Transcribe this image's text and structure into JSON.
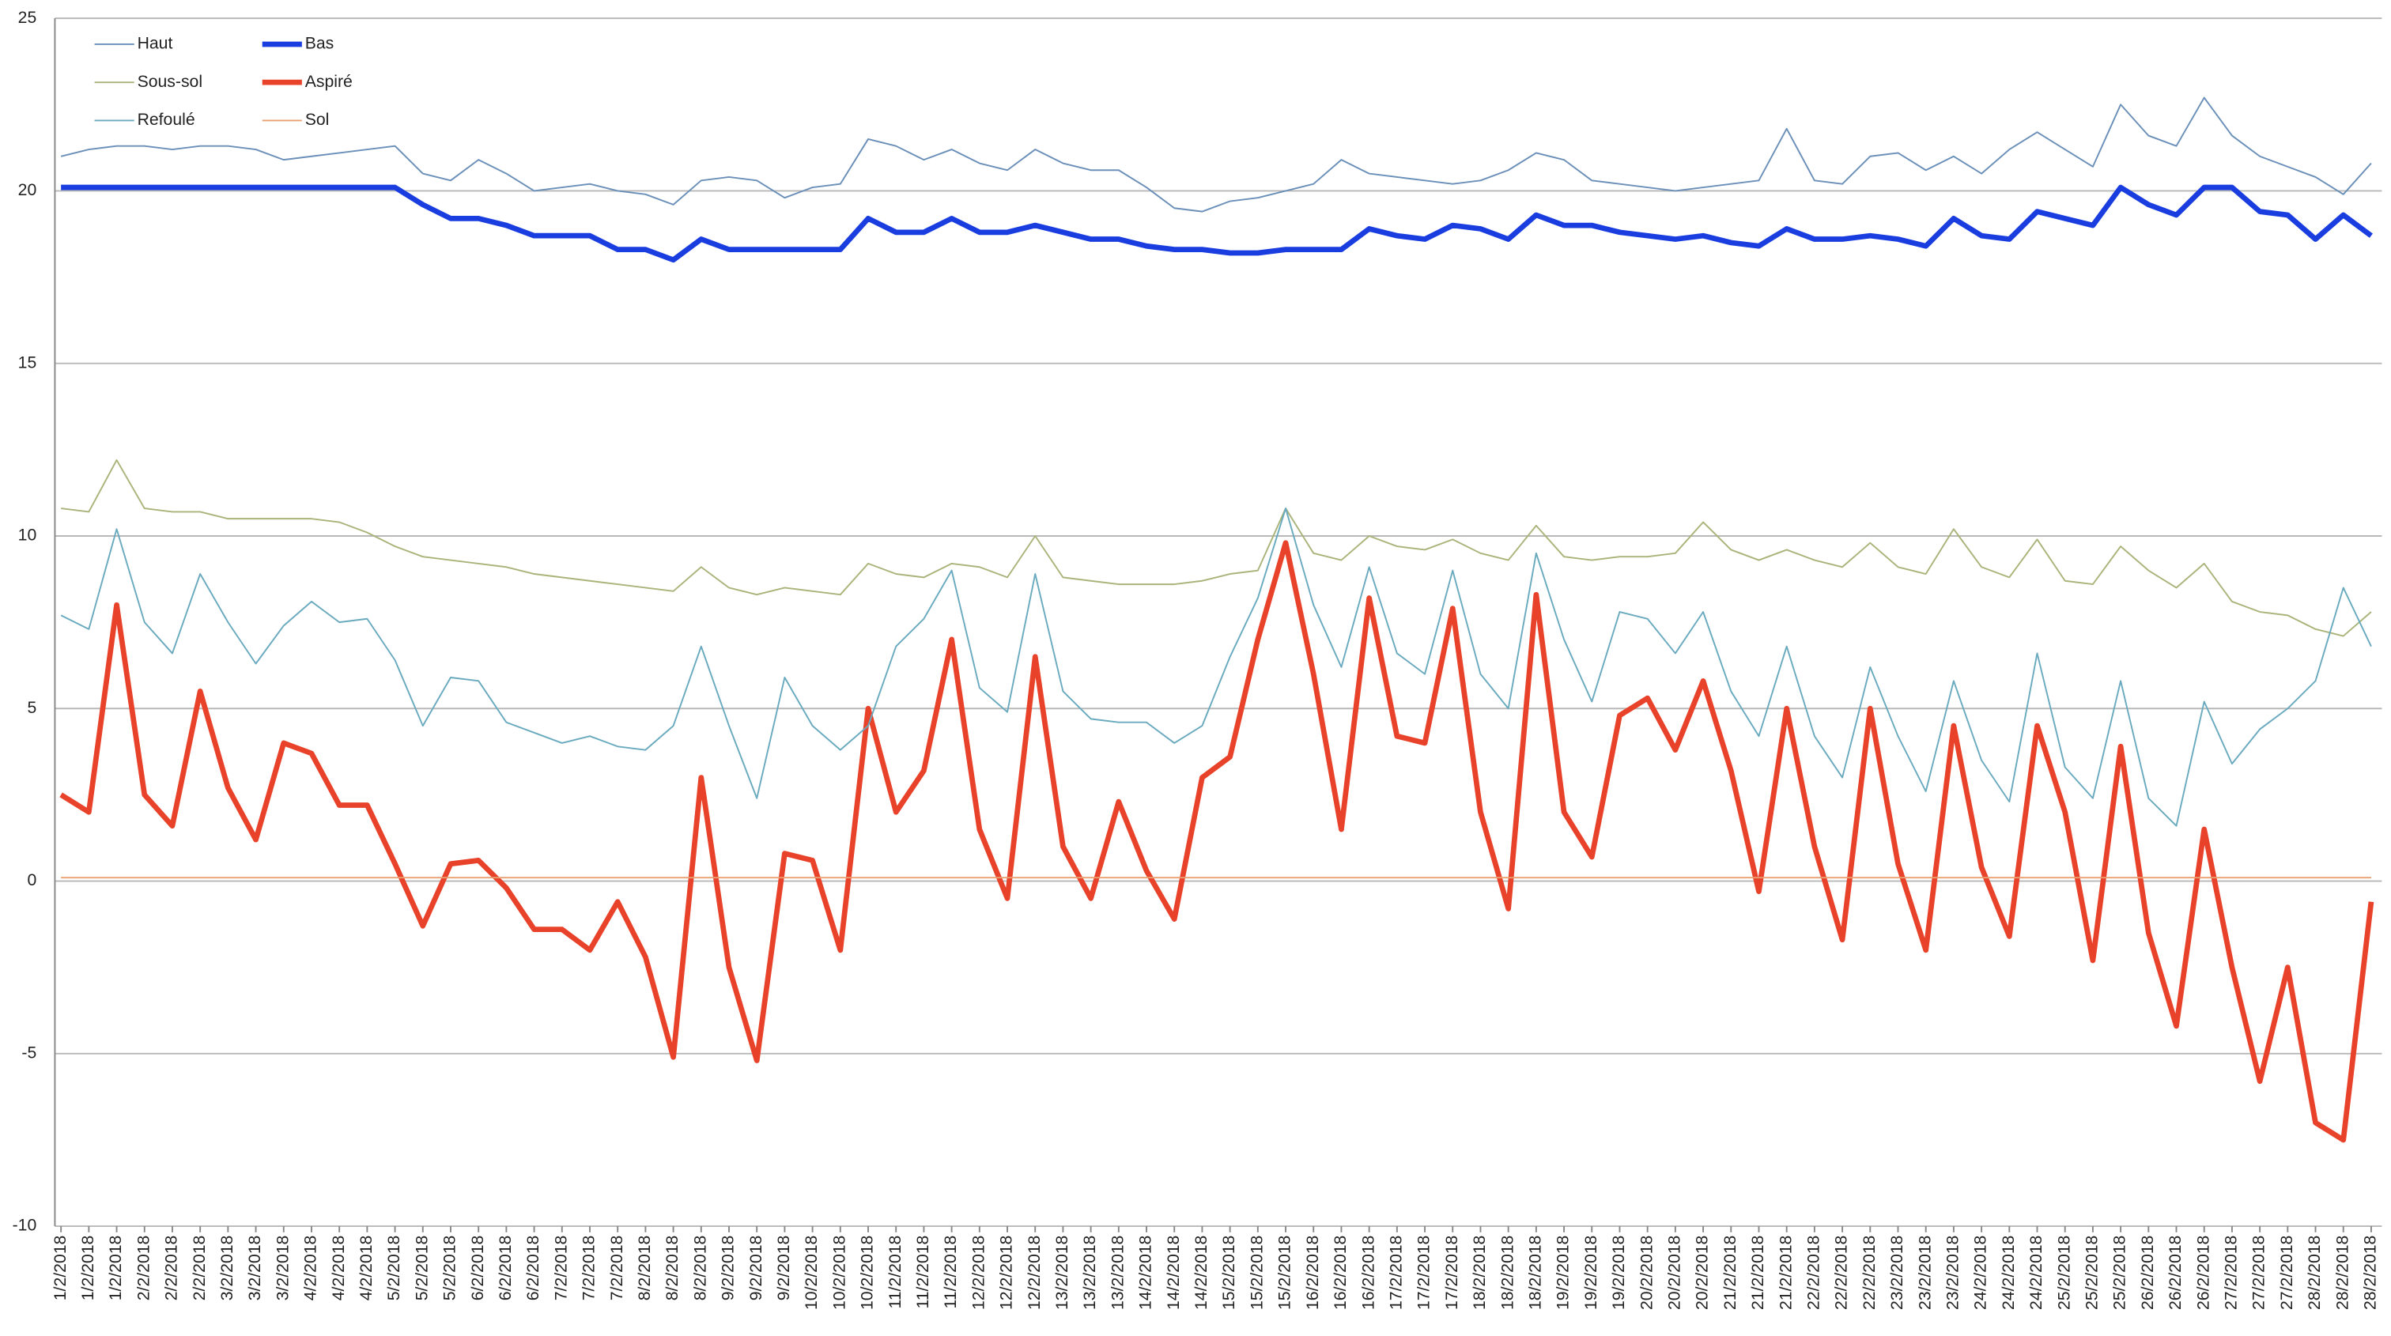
{
  "chart_data": {
    "type": "line",
    "categories": [
      "1/2/2018",
      "1/2/2018",
      "1/2/2018",
      "2/2/2018",
      "2/2/2018",
      "2/2/2018",
      "3/2/2018",
      "3/2/2018",
      "3/2/2018",
      "4/2/2018",
      "4/2/2018",
      "4/2/2018",
      "5/2/2018",
      "5/2/2018",
      "5/2/2018",
      "6/2/2018",
      "6/2/2018",
      "6/2/2018",
      "7/2/2018",
      "7/2/2018",
      "7/2/2018",
      "8/2/2018",
      "8/2/2018",
      "8/2/2018",
      "9/2/2018",
      "9/2/2018",
      "9/2/2018",
      "10/2/2018",
      "10/2/2018",
      "10/2/2018",
      "11/2/2018",
      "11/2/2018",
      "11/2/2018",
      "12/2/2018",
      "12/2/2018",
      "12/2/2018",
      "13/2/2018",
      "13/2/2018",
      "13/2/2018",
      "14/2/2018",
      "14/2/2018",
      "14/2/2018",
      "15/2/2018",
      "15/2/2018",
      "15/2/2018",
      "16/2/2018",
      "16/2/2018",
      "16/2/2018",
      "17/2/2018",
      "17/2/2018",
      "17/2/2018",
      "18/2/2018",
      "18/2/2018",
      "18/2/2018",
      "19/2/2018",
      "19/2/2018",
      "19/2/2018",
      "20/2/2018",
      "20/2/2018",
      "20/2/2018",
      "21/2/2018",
      "21/2/2018",
      "21/2/2018",
      "22/2/2018",
      "22/2/2018",
      "22/2/2018",
      "23/2/2018",
      "23/2/2018",
      "23/2/2018",
      "24/2/2018",
      "24/2/2018",
      "24/2/2018",
      "25/2/2018",
      "25/2/2018",
      "25/2/2018",
      "26/2/2018",
      "26/2/2018",
      "26/2/2018",
      "27/2/2018",
      "27/2/2018",
      "27/2/2018",
      "28/2/2018",
      "28/2/2018",
      "28/2/2018"
    ],
    "series": [
      {
        "name": "Haut",
        "color": "#6a8fb8",
        "line_width": 1,
        "values": [
          21,
          21.2,
          21.3,
          21.3,
          21.2,
          21.3,
          21.3,
          21.2,
          20.9,
          21,
          21.1,
          21.2,
          21.3,
          20.5,
          20.3,
          20.9,
          20.5,
          20,
          20.1,
          20.2,
          20,
          19.9,
          19.6,
          20.3,
          20.4,
          20.3,
          19.8,
          20.1,
          20.2,
          21.5,
          21.3,
          20.9,
          21.2,
          20.8,
          20.6,
          21.2,
          20.8,
          20.6,
          20.6,
          20.1,
          19.5,
          19.4,
          19.7,
          19.8,
          20,
          20.2,
          20.9,
          20.5,
          20.4,
          20.3,
          20.2,
          20.3,
          20.6,
          21.1,
          20.9,
          20.3,
          20.2,
          20.1,
          20,
          20.1,
          20.2,
          20.3,
          21.8,
          20.3,
          20.2,
          21,
          21.1,
          20.6,
          21,
          20.5,
          21.2,
          21.7,
          21.2,
          20.7,
          22.5,
          21.6,
          21.3,
          22.7,
          21.6,
          21,
          20.7,
          20.4,
          19.9,
          20.8
        ]
      },
      {
        "name": "Bas",
        "color": "#1a3de0",
        "line_width": 3.5,
        "values": [
          20.1,
          20.1,
          20.1,
          20.1,
          20.1,
          20.1,
          20.1,
          20.1,
          20.1,
          20.1,
          20.1,
          20.1,
          20.1,
          19.6,
          19.2,
          19.2,
          19,
          18.7,
          18.7,
          18.7,
          18.3,
          18.3,
          18,
          18.6,
          18.3,
          18.3,
          18.3,
          18.3,
          18.3,
          19.2,
          18.8,
          18.8,
          19.2,
          18.8,
          18.8,
          19,
          18.8,
          18.6,
          18.6,
          18.4,
          18.3,
          18.3,
          18.2,
          18.2,
          18.3,
          18.3,
          18.3,
          18.9,
          18.7,
          18.6,
          19,
          18.9,
          18.6,
          19.3,
          19,
          19,
          18.8,
          18.7,
          18.6,
          18.7,
          18.5,
          18.4,
          18.9,
          18.6,
          18.6,
          18.7,
          18.6,
          18.4,
          19.2,
          18.7,
          18.6,
          19.4,
          19.2,
          19,
          20.1,
          19.6,
          19.3,
          20.1,
          20.1,
          19.4,
          19.3,
          18.6,
          19.3,
          18.7
        ]
      },
      {
        "name": "Sous-sol",
        "color": "#a9b47a",
        "line_width": 1,
        "values": [
          10.8,
          10.7,
          12.2,
          10.8,
          10.7,
          10.7,
          10.5,
          10.5,
          10.5,
          10.5,
          10.4,
          10.1,
          9.7,
          9.4,
          9.3,
          9.2,
          9.1,
          8.9,
          8.8,
          8.7,
          8.6,
          8.5,
          8.4,
          9.1,
          8.5,
          8.3,
          8.5,
          8.4,
          8.3,
          9.2,
          8.9,
          8.8,
          9.2,
          9.1,
          8.8,
          10,
          8.8,
          8.7,
          8.6,
          8.6,
          8.6,
          8.7,
          8.9,
          9,
          10.8,
          9.5,
          9.3,
          10,
          9.7,
          9.6,
          9.9,
          9.5,
          9.3,
          10.3,
          9.4,
          9.3,
          9.4,
          9.4,
          9.5,
          10.4,
          9.6,
          9.3,
          9.6,
          9.3,
          9.1,
          9.8,
          9.1,
          8.9,
          10.2,
          9.1,
          8.8,
          9.9,
          8.7,
          8.6,
          9.7,
          9,
          8.5,
          9.2,
          8.1,
          7.8,
          7.7,
          7.3,
          7.1,
          7.8
        ]
      },
      {
        "name": "Aspiré",
        "color": "#e8432a",
        "line_width": 3.5,
        "values": [
          2.5,
          2,
          8,
          2.5,
          1.6,
          5.5,
          2.7,
          1.2,
          4,
          3.7,
          2.2,
          2.2,
          0.5,
          -1.3,
          0.5,
          0.6,
          -0.2,
          -1.4,
          -1.4,
          -2,
          -0.6,
          -2.2,
          -5.1,
          3,
          -2.5,
          -5.2,
          0.8,
          0.6,
          -2,
          5,
          2,
          3.2,
          7,
          1.5,
          -0.5,
          6.5,
          1,
          -0.5,
          2.3,
          0.3,
          -1.1,
          3,
          3.6,
          7,
          9.8,
          6,
          1.5,
          8.2,
          4.2,
          4,
          7.9,
          2,
          -0.8,
          8.3,
          2,
          0.7,
          4.8,
          5.3,
          3.8,
          5.8,
          3.2,
          -0.3,
          5,
          1,
          -1.7,
          5,
          0.5,
          -2,
          4.5,
          0.4,
          -1.6,
          4.5,
          2,
          -2.3,
          3.9,
          -1.5,
          -4.2,
          1.5,
          -2.5,
          -5.8,
          -2.5,
          -7,
          -7.5,
          -0.6
        ]
      },
      {
        "name": "Refoulé",
        "color": "#6aaabf",
        "line_width": 1,
        "values": [
          7.7,
          7.3,
          10.2,
          7.5,
          6.6,
          8.9,
          7.5,
          6.3,
          7.4,
          8.1,
          7.5,
          7.6,
          6.4,
          4.5,
          5.9,
          5.8,
          4.6,
          4.3,
          4,
          4.2,
          3.9,
          3.8,
          4.5,
          6.8,
          4.5,
          2.4,
          5.9,
          4.5,
          3.8,
          4.5,
          6.8,
          7.6,
          9,
          5.6,
          4.9,
          8.9,
          5.5,
          4.7,
          4.6,
          4.6,
          4,
          4.5,
          6.5,
          8.2,
          10.8,
          8,
          6.2,
          9.1,
          6.6,
          6,
          9,
          6,
          5,
          9.5,
          7,
          5.2,
          7.8,
          7.6,
          6.6,
          7.8,
          5.5,
          4.2,
          6.8,
          4.2,
          3,
          6.2,
          4.2,
          2.6,
          5.8,
          3.5,
          2.3,
          6.6,
          3.3,
          2.4,
          5.8,
          2.4,
          1.6,
          5.2,
          3.4,
          4.4,
          5,
          5.8,
          8.5,
          6.8
        ]
      },
      {
        "name": "Sol",
        "color": "#e8a070",
        "line_width": 1,
        "values": [
          0.1,
          0.1,
          0.1,
          0.1,
          0.1,
          0.1,
          0.1,
          0.1,
          0.1,
          0.1,
          0.1,
          0.1,
          0.1,
          0.1,
          0.1,
          0.1,
          0.1,
          0.1,
          0.1,
          0.1,
          0.1,
          0.1,
          0.1,
          0.1,
          0.1,
          0.1,
          0.1,
          0.1,
          0.1,
          0.1,
          0.1,
          0.1,
          0.1,
          0.1,
          0.1,
          0.1,
          0.1,
          0.1,
          0.1,
          0.1,
          0.1,
          0.1,
          0.1,
          0.1,
          0.1,
          0.1,
          0.1,
          0.1,
          0.1,
          0.1,
          0.1,
          0.1,
          0.1,
          0.1,
          0.1,
          0.1,
          0.1,
          0.1,
          0.1,
          0.1,
          0.1,
          0.1,
          0.1,
          0.1,
          0.1,
          0.1,
          0.1,
          0.1,
          0.1,
          0.1,
          0.1,
          0.1,
          0.1,
          0.1,
          0.1,
          0.1,
          0.1,
          0.1,
          0.1,
          0.1,
          0.1,
          0.1,
          0.1,
          0.1
        ]
      }
    ],
    "ylim": [
      -10,
      25
    ],
    "yticks": [
      -10,
      -5,
      0,
      5,
      10,
      15,
      20,
      25
    ],
    "grid": true,
    "legend": "upper left"
  }
}
